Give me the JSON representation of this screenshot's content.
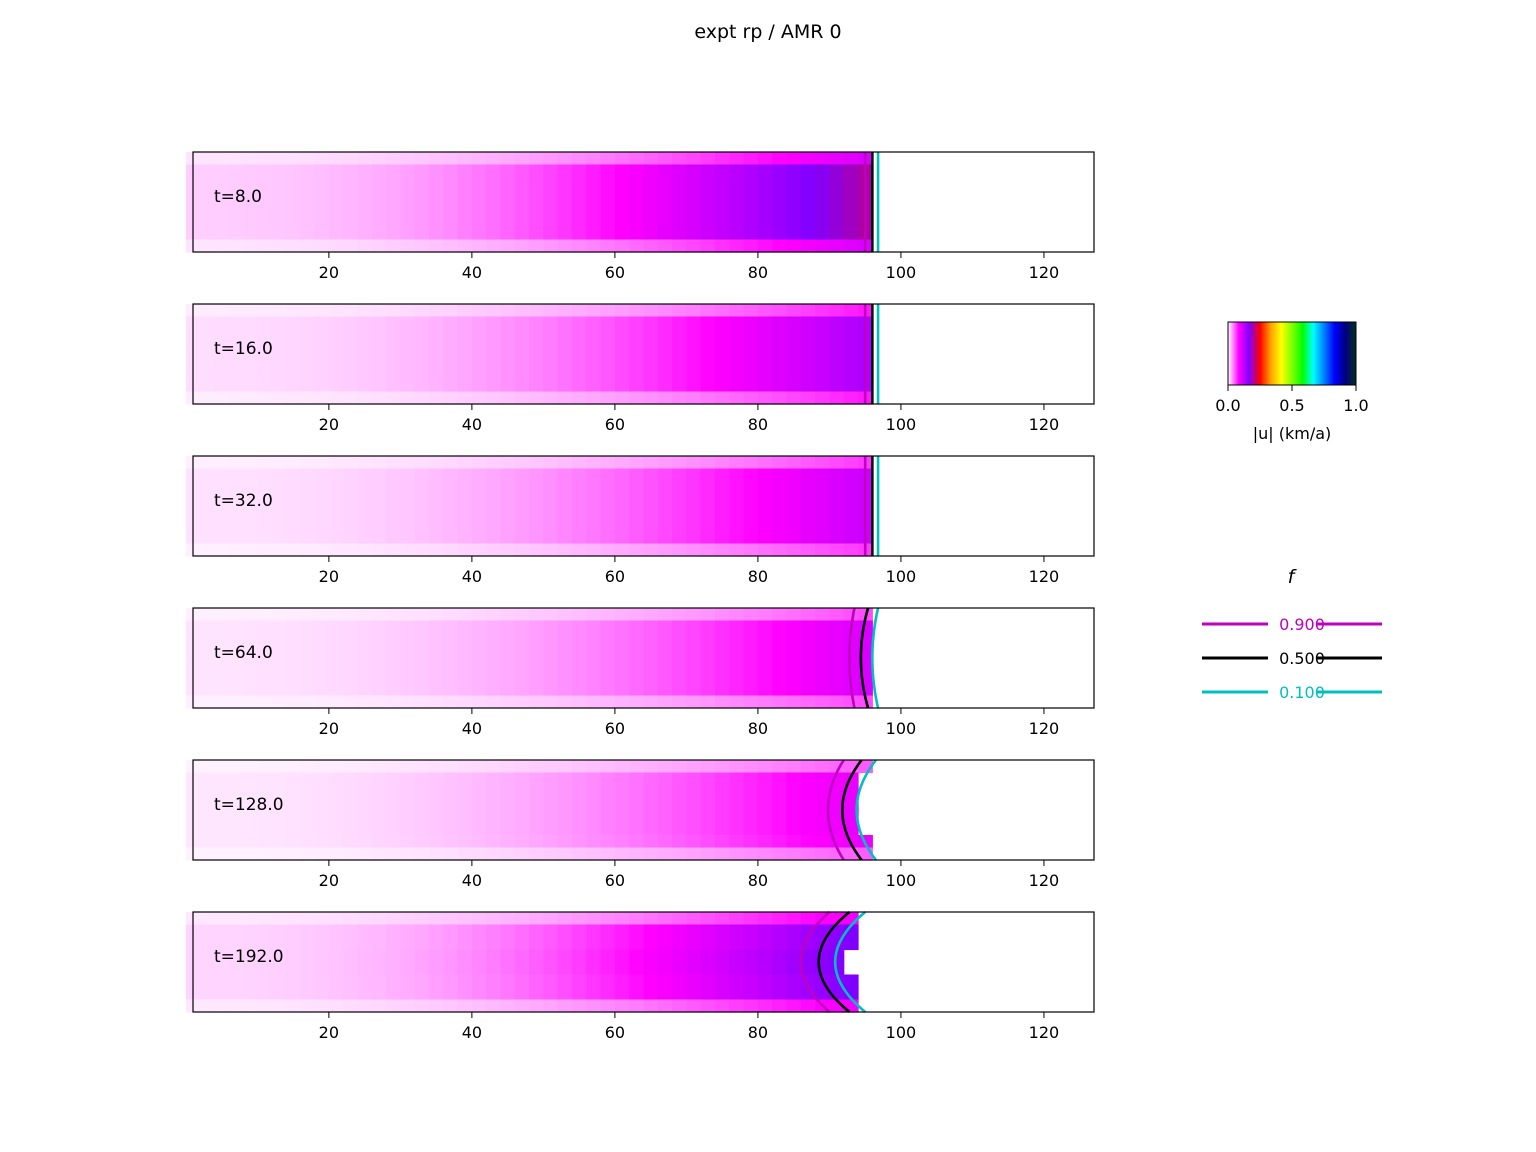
{
  "title": "expt rp / AMR 0",
  "chart_data": {
    "type": "heatmap",
    "title": "expt rp / AMR 0",
    "xlim": [
      1,
      127
    ],
    "xticks": [
      20,
      40,
      60,
      80,
      100,
      120
    ],
    "xlabel": "",
    "ylabel": "",
    "grid": false,
    "panels": [
      {
        "label": "t=8.0",
        "peak": 0.2,
        "front": [
          96,
          96,
          96,
          96,
          96,
          96,
          96,
          96
        ],
        "contours": {
          "0.900": [
            95.0,
            95.0
          ],
          "0.500": [
            96.0,
            96.0
          ],
          "0.100": [
            96.8,
            96.8
          ]
        }
      },
      {
        "label": "t=16.0",
        "peak": 0.14,
        "front": [
          96,
          96,
          96,
          96,
          96,
          96,
          96,
          96
        ],
        "contours": {
          "0.900": [
            95.0,
            95.0
          ],
          "0.500": [
            96.0,
            96.0
          ],
          "0.100": [
            96.8,
            96.8
          ]
        }
      },
      {
        "label": "t=32.0",
        "peak": 0.12,
        "front": [
          96,
          96,
          96,
          96,
          96,
          96,
          96,
          96
        ],
        "contours": {
          "0.900": [
            95.0,
            95.0
          ],
          "0.500": [
            96.0,
            96.0
          ],
          "0.100": [
            96.8,
            96.8
          ]
        }
      },
      {
        "label": "t=64.0",
        "peak": 0.11,
        "front": [
          96,
          96,
          96,
          96,
          96,
          96,
          96,
          96
        ],
        "contours": {
          "0.900": [
            93.5,
            92.8
          ],
          "0.500": [
            95.4,
            94.4
          ],
          "0.100": [
            96.8,
            96.0
          ]
        }
      },
      {
        "label": "t=128.0",
        "peak": 0.1,
        "front": [
          96,
          94,
          94,
          94,
          94,
          94,
          96,
          96
        ],
        "contours": {
          "0.900": [
            92.0,
            89.8
          ],
          "0.500": [
            94.5,
            91.8
          ],
          "0.100": [
            96.5,
            93.8
          ]
        }
      },
      {
        "label": "t=192.0",
        "peak": 0.17,
        "front": [
          94,
          94,
          94,
          92,
          92,
          94,
          94,
          94
        ],
        "contours": {
          "0.900": [
            90.0,
            86.0
          ],
          "0.500": [
            92.8,
            88.5
          ],
          "0.100": [
            95.0,
            90.8
          ]
        }
      }
    ],
    "colorbar": {
      "label": "|u| (km/a)",
      "ticks": [
        "0.0",
        "0.5",
        "1.0"
      ],
      "range": [
        0.0,
        1.0
      ],
      "colors": [
        "#ffffff",
        "#ff00ff",
        "#8000ff",
        "#ff0000",
        "#ffa000",
        "#ffff00",
        "#80ff00",
        "#00ff00",
        "#00ffff",
        "#0080ff",
        "#0000ff",
        "#000080",
        "#003020"
      ]
    },
    "legend": {
      "title": "f",
      "placement": "right",
      "entries": [
        {
          "label": "0.900",
          "color": "#bf00bf"
        },
        {
          "label": "0.500",
          "color": "#000000"
        },
        {
          "label": "0.100",
          "color": "#00bfbf"
        }
      ]
    }
  }
}
